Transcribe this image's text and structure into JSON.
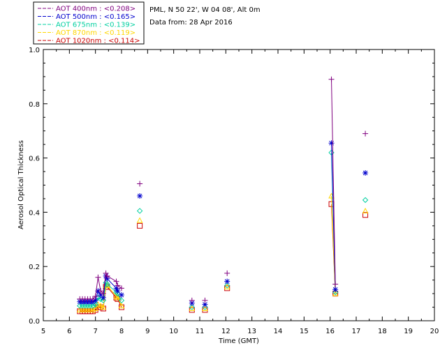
{
  "site_title": "PML, N 50 22', W 04 08', Alt 0m",
  "data_date": "Data from: 28 Apr 2016",
  "chart_data": {
    "type": "scatter",
    "xlabel": "Time (GMT)",
    "ylabel": "Aerosol Optical Thickness",
    "xlim": [
      5,
      20
    ],
    "ylim": [
      0.0,
      1.0
    ],
    "xticks": [
      5,
      6,
      7,
      8,
      9,
      10,
      11,
      12,
      13,
      14,
      15,
      16,
      17,
      18,
      19,
      20
    ],
    "yticks": [
      0.0,
      0.2,
      0.4,
      0.6,
      0.8,
      1.0
    ],
    "ytick_labels": [
      "0.0",
      "0.2",
      "0.4",
      "0.6",
      "0.8",
      "1.0"
    ],
    "grid": false,
    "legend_position": "top-left",
    "x": [
      6.4,
      6.5,
      6.6,
      6.7,
      6.8,
      6.9,
      7.0,
      7.1,
      7.2,
      7.3,
      7.4,
      7.45,
      7.8,
      7.85,
      8.0,
      8.7,
      10.7,
      11.2,
      12.05,
      16.05,
      16.2,
      17.35
    ],
    "series": [
      {
        "name": "AOT  400nm : <0.208>",
        "color": "#800080",
        "marker": "plus",
        "connect_until_index": 14,
        "values": [
          0.08,
          0.08,
          0.08,
          0.08,
          0.08,
          0.08,
          0.09,
          0.16,
          0.11,
          0.1,
          0.175,
          0.165,
          0.145,
          0.13,
          0.12,
          0.505,
          0.075,
          0.075,
          0.175,
          0.89,
          0.135,
          0.69
        ]
      },
      {
        "name": "AOT  500nm : <0.165>",
        "color": "#0000cd",
        "marker": "asterisk",
        "connect_until_index": 14,
        "values": [
          0.07,
          0.07,
          0.07,
          0.07,
          0.07,
          0.07,
          0.075,
          0.11,
          0.095,
          0.085,
          0.165,
          0.155,
          0.12,
          0.11,
          0.095,
          0.46,
          0.065,
          0.06,
          0.145,
          0.655,
          0.115,
          0.545
        ]
      },
      {
        "name": "AOT  675nm : <0.139>",
        "color": "#00d0a0",
        "marker": "diamond",
        "connect_until_index": 14,
        "values": [
          0.055,
          0.055,
          0.055,
          0.055,
          0.055,
          0.055,
          0.06,
          0.085,
          0.08,
          0.075,
          0.14,
          0.135,
          0.105,
          0.1,
          0.075,
          0.405,
          0.05,
          0.05,
          0.13,
          0.62,
          0.105,
          0.445
        ]
      },
      {
        "name": "AOT  870nm : <0.119>",
        "color": "#ffd700",
        "marker": "triangle",
        "connect_until_index": 14,
        "values": [
          0.04,
          0.04,
          0.04,
          0.04,
          0.04,
          0.04,
          0.045,
          0.06,
          0.055,
          0.05,
          0.13,
          0.13,
          0.09,
          0.085,
          0.055,
          0.37,
          0.045,
          0.045,
          0.125,
          0.46,
          0.1,
          0.405
        ]
      },
      {
        "name": "AOT 1020nm : <0.114>",
        "color": "#cc0000",
        "marker": "square",
        "connect_until_index": 14,
        "values": [
          0.035,
          0.035,
          0.035,
          0.035,
          0.035,
          0.035,
          0.04,
          0.05,
          0.05,
          0.045,
          0.125,
          0.125,
          0.085,
          0.08,
          0.05,
          0.35,
          0.04,
          0.04,
          0.12,
          0.43,
          0.1,
          0.39
        ]
      }
    ]
  }
}
